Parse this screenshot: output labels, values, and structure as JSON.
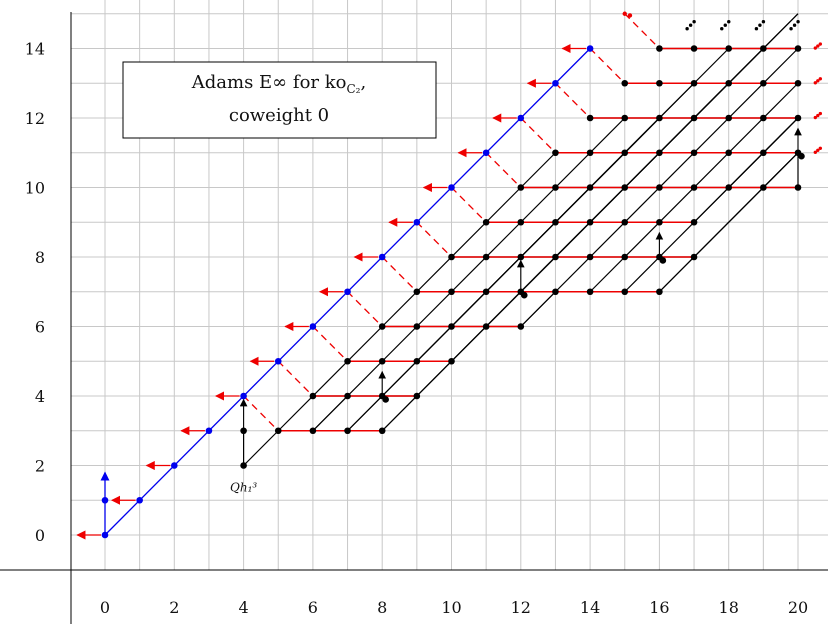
{
  "chart_data": {
    "type": "scatter",
    "title_lines": [
      "Adams E∞ for ko",
      "coweight 0"
    ],
    "title_subscript": "C₂",
    "annotation": {
      "text": "Qh₁³",
      "x": 4,
      "y": 2
    },
    "x_ticks": [
      0,
      2,
      4,
      6,
      8,
      10,
      12,
      14,
      16,
      18,
      20
    ],
    "y_ticks": [
      0,
      2,
      4,
      6,
      8,
      10,
      12,
      14
    ],
    "xlim": [
      -1,
      21
    ],
    "ylim": [
      -1,
      15
    ],
    "grid": true,
    "colors": {
      "blue": "#0000ee",
      "black": "#000000",
      "red": "#ee0000",
      "grid": "#c8c8c8"
    },
    "blue_points": [
      [
        0,
        0
      ],
      [
        0,
        1
      ],
      [
        1,
        1
      ],
      [
        2,
        2
      ],
      [
        3,
        3
      ],
      [
        4,
        4
      ],
      [
        5,
        5
      ],
      [
        6,
        6
      ],
      [
        7,
        7
      ],
      [
        8,
        8
      ],
      [
        9,
        9
      ],
      [
        10,
        10
      ],
      [
        11,
        11
      ],
      [
        12,
        12
      ],
      [
        13,
        13
      ],
      [
        14,
        14
      ]
    ],
    "black_points": [
      [
        4,
        2
      ],
      [
        4,
        3
      ],
      [
        5,
        3
      ],
      [
        6,
        3
      ],
      [
        7,
        3
      ],
      [
        8,
        3
      ],
      [
        6,
        4
      ],
      [
        7,
        4
      ],
      [
        8,
        4
      ],
      [
        8.1,
        3.9
      ],
      [
        9,
        4
      ],
      [
        7,
        5
      ],
      [
        8,
        5
      ],
      [
        9,
        5
      ],
      [
        10,
        5
      ],
      [
        8,
        6
      ],
      [
        9,
        6
      ],
      [
        10,
        6
      ],
      [
        11,
        6
      ],
      [
        12,
        6
      ],
      [
        9,
        7
      ],
      [
        10,
        7
      ],
      [
        11,
        7
      ],
      [
        12,
        7
      ],
      [
        12.1,
        6.9
      ],
      [
        13,
        7
      ],
      [
        14,
        7
      ],
      [
        15,
        7
      ],
      [
        16,
        7
      ],
      [
        10,
        8
      ],
      [
        11,
        8
      ],
      [
        12,
        8
      ],
      [
        13,
        8
      ],
      [
        14,
        8
      ],
      [
        15,
        8
      ],
      [
        16,
        8
      ],
      [
        16.1,
        7.9
      ],
      [
        17,
        8
      ],
      [
        11,
        9
      ],
      [
        12,
        9
      ],
      [
        13,
        9
      ],
      [
        14,
        9
      ],
      [
        15,
        9
      ],
      [
        16,
        9
      ],
      [
        17,
        9
      ],
      [
        12,
        10
      ],
      [
        13,
        10
      ],
      [
        14,
        10
      ],
      [
        15,
        10
      ],
      [
        16,
        10
      ],
      [
        17,
        10
      ],
      [
        18,
        10
      ],
      [
        19,
        10
      ],
      [
        20,
        10
      ],
      [
        13,
        11
      ],
      [
        14,
        11
      ],
      [
        15,
        11
      ],
      [
        16,
        11
      ],
      [
        17,
        11
      ],
      [
        18,
        11
      ],
      [
        19,
        11
      ],
      [
        20,
        11
      ],
      [
        20.1,
        10.9
      ],
      [
        14,
        12
      ],
      [
        15,
        12
      ],
      [
        16,
        12
      ],
      [
        17,
        12
      ],
      [
        18,
        12
      ],
      [
        19,
        12
      ],
      [
        20,
        12
      ],
      [
        15,
        13
      ],
      [
        16,
        13
      ],
      [
        17,
        13
      ],
      [
        18,
        13
      ],
      [
        19,
        13
      ],
      [
        20,
        13
      ],
      [
        16,
        14
      ],
      [
        17,
        14
      ],
      [
        18,
        14
      ],
      [
        19,
        14
      ],
      [
        20,
        14
      ]
    ],
    "red_points": [
      [
        15,
        15
      ],
      [
        15.15,
        14.95
      ]
    ],
    "black_segments": [
      [
        4,
        2,
        4,
        3
      ],
      [
        4,
        2,
        5,
        3
      ],
      [
        5,
        3,
        8,
        3
      ],
      [
        6,
        3,
        7,
        4
      ],
      [
        7,
        3,
        8,
        4
      ],
      [
        8,
        3,
        9,
        4
      ],
      [
        5,
        3,
        13,
        11
      ],
      [
        6,
        3,
        15,
        12
      ],
      [
        7,
        3,
        16,
        12
      ],
      [
        8,
        3,
        20,
        15
      ],
      [
        6,
        4,
        8,
        4
      ],
      [
        8,
        4,
        9,
        4
      ],
      [
        7,
        5,
        10,
        5
      ],
      [
        8,
        6,
        12,
        6
      ],
      [
        9,
        7,
        16,
        7
      ],
      [
        12,
        6,
        13,
        7
      ],
      [
        14,
        7,
        20,
        13
      ],
      [
        15,
        7,
        20,
        12
      ],
      [
        16,
        7,
        20,
        11
      ],
      [
        16,
        7,
        17,
        8
      ],
      [
        10,
        8,
        17,
        8
      ],
      [
        11,
        9,
        17,
        9
      ],
      [
        17,
        8,
        20,
        11
      ],
      [
        17,
        9,
        20,
        12
      ],
      [
        12,
        10,
        20,
        10
      ],
      [
        13,
        11,
        20,
        11
      ],
      [
        14,
        12,
        20,
        12
      ],
      [
        15,
        13,
        20,
        13
      ],
      [
        16,
        14,
        20,
        14
      ],
      [
        7,
        5,
        9,
        5
      ],
      [
        8,
        4,
        16,
        12
      ],
      [
        9,
        5,
        17,
        13
      ],
      [
        10,
        5,
        18,
        13
      ],
      [
        9,
        4,
        19,
        14
      ],
      [
        10,
        6,
        18,
        14
      ],
      [
        11,
        6,
        20,
        15
      ],
      [
        12,
        6,
        20,
        14
      ],
      [
        18,
        10,
        20,
        12
      ],
      [
        19,
        10,
        20,
        11
      ],
      [
        20,
        10,
        20,
        11
      ]
    ],
    "black_arrows": [
      [
        4,
        3,
        4,
        3.9
      ],
      [
        8,
        4,
        8,
        4.7
      ],
      [
        12,
        7,
        12,
        7.9
      ],
      [
        16,
        8,
        16,
        8.7
      ],
      [
        20,
        11,
        20,
        11.7
      ]
    ],
    "blue_segments": [
      [
        0,
        0,
        14,
        14
      ],
      [
        0,
        0,
        0,
        1
      ]
    ],
    "blue_arrows": [
      [
        0,
        1,
        0,
        1.8
      ]
    ],
    "red_arrows": [
      [
        0,
        0,
        -0.8,
        0
      ],
      [
        1,
        1,
        0.2,
        1
      ],
      [
        2,
        2,
        1.2,
        2
      ],
      [
        3,
        3,
        2.2,
        3
      ],
      [
        4,
        4,
        3.2,
        4
      ],
      [
        5,
        5,
        4.2,
        5
      ],
      [
        6,
        6,
        5.2,
        6
      ],
      [
        7,
        7,
        6.2,
        7
      ],
      [
        8,
        8,
        7.2,
        8
      ],
      [
        9,
        9,
        8.2,
        9
      ],
      [
        10,
        10,
        9.2,
        10
      ],
      [
        11,
        11,
        10.2,
        11
      ],
      [
        12,
        12,
        11.2,
        12
      ],
      [
        13,
        13,
        12.2,
        13
      ],
      [
        14,
        14,
        13.2,
        14
      ]
    ],
    "red_dashed": [
      [
        4,
        4,
        5,
        3
      ],
      [
        5,
        5,
        6,
        4
      ],
      [
        6,
        6,
        7,
        5
      ],
      [
        7,
        7,
        8,
        6
      ],
      [
        8,
        8,
        9,
        7
      ],
      [
        9,
        9,
        10,
        8
      ],
      [
        10,
        10,
        11,
        9
      ],
      [
        11,
        11,
        12,
        10
      ],
      [
        12,
        12,
        13,
        11
      ],
      [
        13,
        13,
        14,
        12
      ],
      [
        14,
        14,
        15,
        13
      ],
      [
        15,
        15,
        16,
        14
      ]
    ],
    "red_lines": [
      [
        16,
        14,
        20,
        14
      ],
      [
        15,
        13,
        20,
        13
      ],
      [
        14,
        12,
        20,
        12
      ],
      [
        13,
        11,
        20,
        11
      ],
      [
        12,
        10,
        20,
        10
      ],
      [
        11,
        9,
        17,
        9
      ],
      [
        10,
        8,
        17,
        8
      ],
      [
        9,
        7,
        12,
        7
      ],
      [
        12,
        7,
        16,
        7
      ],
      [
        8,
        6,
        12,
        6
      ],
      [
        7,
        5,
        10,
        5
      ],
      [
        6,
        4,
        9,
        4
      ],
      [
        5,
        3,
        8,
        3
      ]
    ],
    "dots_black": [
      [
        16.8,
        14.8
      ],
      [
        17.8,
        14.8
      ],
      [
        18.8,
        14.8
      ],
      [
        19.8,
        14.8
      ]
    ],
    "dots_red": [
      [
        20.5,
        14.1
      ],
      [
        20.5,
        13.1
      ],
      [
        20.5,
        12.1
      ],
      [
        20.5,
        11.1
      ]
    ]
  }
}
